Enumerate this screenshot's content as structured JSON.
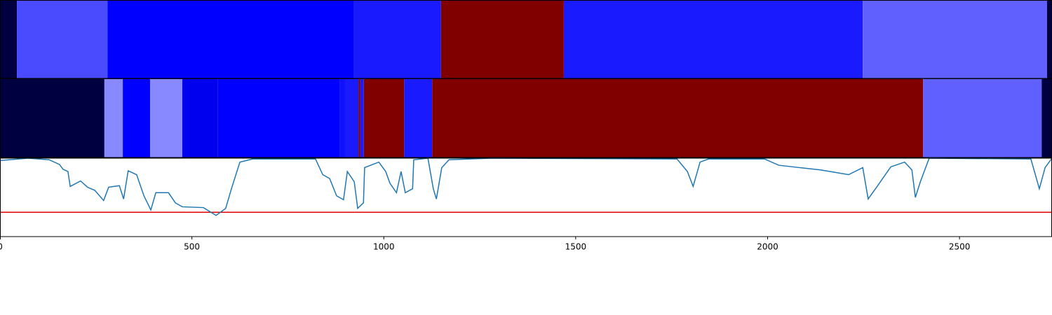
{
  "chart_data": {
    "type": "line",
    "xlim": [
      0,
      2741
    ],
    "xticks": [
      0,
      500,
      1000,
      1500,
      2000,
      2500
    ],
    "ylim": [
      0,
      1
    ],
    "bands": [
      {
        "segments": [
          {
            "start": 0,
            "end": 44,
            "color": "#000040"
          },
          {
            "start": 44,
            "end": 280,
            "color": "#4a4aff"
          },
          {
            "start": 280,
            "end": 921,
            "color": "#0000ff"
          },
          {
            "start": 921,
            "end": 1149,
            "color": "#1a1aff"
          },
          {
            "start": 1149,
            "end": 1469,
            "color": "#800000"
          },
          {
            "start": 1469,
            "end": 2248,
            "color": "#1a1aff"
          },
          {
            "start": 2248,
            "end": 2728,
            "color": "#6060ff"
          },
          {
            "start": 2728,
            "end": 2741,
            "color": "#000040"
          }
        ]
      },
      {
        "segments": [
          {
            "start": 0,
            "end": 272,
            "color": "#000040"
          },
          {
            "start": 272,
            "end": 320,
            "color": "#8888ff"
          },
          {
            "start": 320,
            "end": 391,
            "color": "#0000ff"
          },
          {
            "start": 391,
            "end": 475,
            "color": "#8888ff"
          },
          {
            "start": 475,
            "end": 567,
            "color": "#0000ee"
          },
          {
            "start": 567,
            "end": 886,
            "color": "#0000ff"
          },
          {
            "start": 886,
            "end": 899,
            "color": "#1010ff"
          },
          {
            "start": 899,
            "end": 934,
            "color": "#1a1aff"
          },
          {
            "start": 934,
            "end": 939,
            "color": "#800000"
          },
          {
            "start": 939,
            "end": 948,
            "color": "#1a1aff"
          },
          {
            "start": 948,
            "end": 1053,
            "color": "#800000"
          },
          {
            "start": 1053,
            "end": 1126,
            "color": "#1a1aff"
          },
          {
            "start": 1126,
            "end": 2405,
            "color": "#800000"
          },
          {
            "start": 2405,
            "end": 2714,
            "color": "#6060ff"
          },
          {
            "start": 2714,
            "end": 2741,
            "color": "#000040"
          }
        ]
      }
    ],
    "threshold": {
      "value": 0.31,
      "color": "#e00000"
    },
    "series": [
      {
        "color": "#1f77b4",
        "x": [
          0,
          73,
          128,
          155,
          164,
          177,
          183,
          210,
          228,
          247,
          270,
          283,
          311,
          322,
          334,
          356,
          375,
          393,
          406,
          439,
          457,
          475,
          530,
          563,
          588,
          603,
          625,
          658,
          822,
          841,
          859,
          877,
          895,
          905,
          923,
          932,
          947,
          950,
          987,
          1005,
          1016,
          1033,
          1045,
          1056,
          1075,
          1078,
          1115,
          1129,
          1137,
          1151,
          1170,
          1279,
          1764,
          1791,
          1806,
          1824,
          1846,
          1992,
          2029,
          2083,
          2138,
          2211,
          2248,
          2262,
          2284,
          2321,
          2357,
          2376,
          2385,
          2398,
          2421,
          2686,
          2708,
          2723,
          2741
        ],
        "values": [
          0.97,
          1.0,
          0.98,
          0.92,
          0.86,
          0.83,
          0.64,
          0.71,
          0.63,
          0.59,
          0.46,
          0.63,
          0.65,
          0.48,
          0.84,
          0.79,
          0.52,
          0.34,
          0.56,
          0.56,
          0.43,
          0.38,
          0.37,
          0.27,
          0.36,
          0.61,
          0.95,
          0.99,
          0.99,
          0.79,
          0.74,
          0.52,
          0.47,
          0.83,
          0.7,
          0.36,
          0.43,
          0.88,
          0.95,
          0.83,
          0.68,
          0.56,
          0.83,
          0.56,
          0.61,
          0.98,
          1.0,
          0.61,
          0.48,
          0.88,
          0.98,
          1.0,
          0.99,
          0.83,
          0.64,
          0.95,
          0.99,
          0.99,
          0.91,
          0.88,
          0.85,
          0.79,
          0.88,
          0.48,
          0.63,
          0.89,
          0.95,
          0.85,
          0.5,
          0.7,
          1.0,
          0.99,
          0.61,
          0.88,
          1.0
        ]
      }
    ]
  }
}
